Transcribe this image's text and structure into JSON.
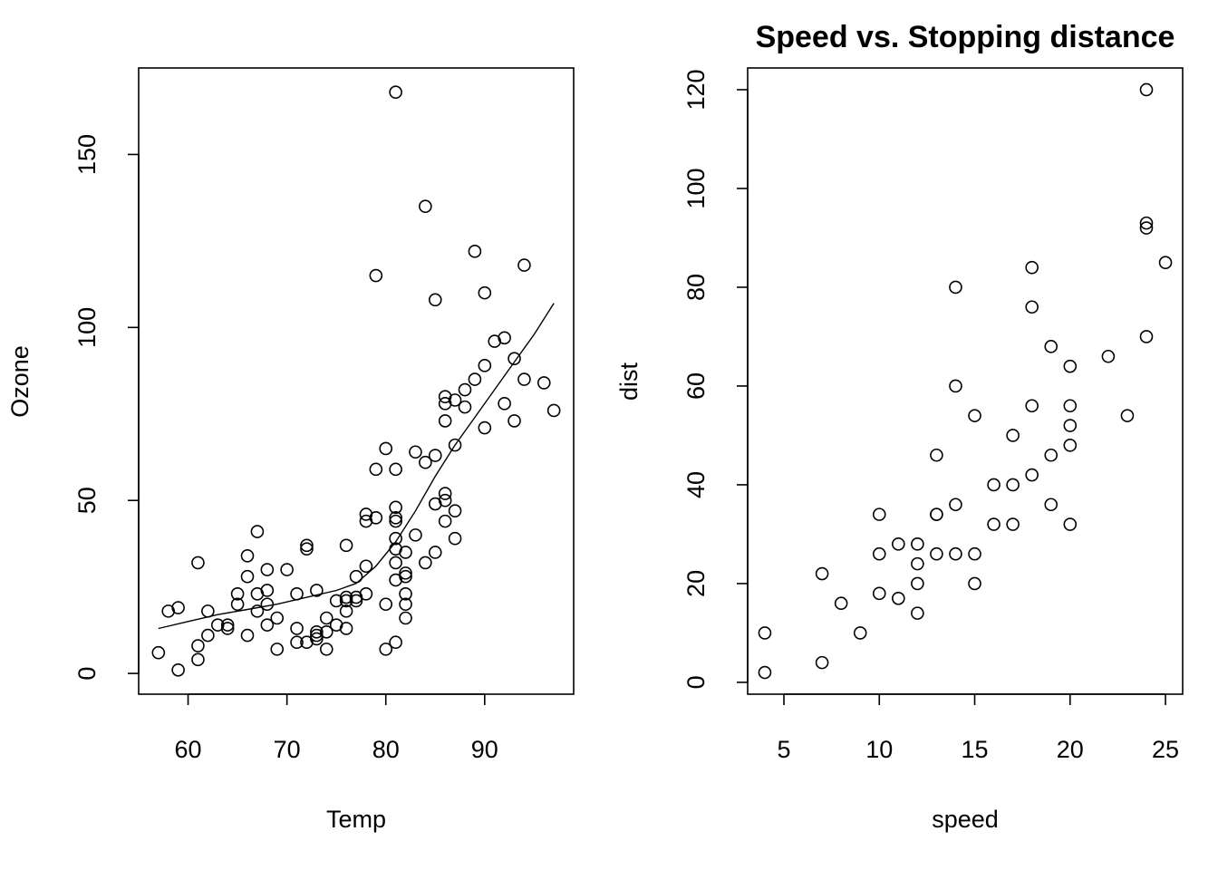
{
  "chart_data": [
    {
      "type": "scatter",
      "title": "",
      "xlabel": "Temp",
      "ylabel": "Ozone",
      "xlim": [
        55,
        99
      ],
      "ylim": [
        -6,
        175
      ],
      "xticks": [
        60,
        70,
        80,
        90
      ],
      "yticks": [
        0,
        50,
        100,
        150
      ],
      "grid": false,
      "points": [
        [
          57,
          6
        ],
        [
          58,
          18
        ],
        [
          59,
          1
        ],
        [
          59,
          19
        ],
        [
          61,
          4
        ],
        [
          61,
          8
        ],
        [
          61,
          32
        ],
        [
          62,
          11
        ],
        [
          62,
          18
        ],
        [
          63,
          14
        ],
        [
          64,
          13
        ],
        [
          64,
          14
        ],
        [
          65,
          20
        ],
        [
          65,
          23
        ],
        [
          66,
          11
        ],
        [
          66,
          28
        ],
        [
          66,
          34
        ],
        [
          67,
          18
        ],
        [
          67,
          23
        ],
        [
          67,
          41
        ],
        [
          68,
          14
        ],
        [
          68,
          20
        ],
        [
          68,
          24
        ],
        [
          68,
          30
        ],
        [
          69,
          7
        ],
        [
          69,
          16
        ],
        [
          70,
          30
        ],
        [
          71,
          9
        ],
        [
          71,
          13
        ],
        [
          71,
          23
        ],
        [
          72,
          9
        ],
        [
          72,
          36
        ],
        [
          72,
          37
        ],
        [
          73,
          10
        ],
        [
          73,
          11
        ],
        [
          73,
          12
        ],
        [
          73,
          24
        ],
        [
          74,
          7
        ],
        [
          74,
          12
        ],
        [
          74,
          16
        ],
        [
          75,
          14
        ],
        [
          75,
          21
        ],
        [
          76,
          13
        ],
        [
          76,
          18
        ],
        [
          76,
          21
        ],
        [
          76,
          22
        ],
        [
          76,
          37
        ],
        [
          77,
          21
        ],
        [
          77,
          22
        ],
        [
          77,
          28
        ],
        [
          78,
          23
        ],
        [
          78,
          31
        ],
        [
          78,
          44
        ],
        [
          78,
          46
        ],
        [
          79,
          45
        ],
        [
          79,
          59
        ],
        [
          79,
          115
        ],
        [
          80,
          7
        ],
        [
          80,
          20
        ],
        [
          80,
          65
        ],
        [
          81,
          9
        ],
        [
          81,
          27
        ],
        [
          81,
          32
        ],
        [
          81,
          36
        ],
        [
          81,
          39
        ],
        [
          81,
          44
        ],
        [
          81,
          45
        ],
        [
          81,
          48
        ],
        [
          81,
          59
        ],
        [
          81,
          168
        ],
        [
          82,
          16
        ],
        [
          82,
          20
        ],
        [
          82,
          23
        ],
        [
          82,
          28
        ],
        [
          82,
          29
        ],
        [
          82,
          35
        ],
        [
          83,
          40
        ],
        [
          83,
          64
        ],
        [
          84,
          32
        ],
        [
          84,
          61
        ],
        [
          84,
          135
        ],
        [
          85,
          35
        ],
        [
          85,
          49
        ],
        [
          85,
          63
        ],
        [
          85,
          108
        ],
        [
          86,
          44
        ],
        [
          86,
          50
        ],
        [
          86,
          52
        ],
        [
          86,
          73
        ],
        [
          86,
          78
        ],
        [
          86,
          80
        ],
        [
          87,
          39
        ],
        [
          87,
          47
        ],
        [
          87,
          66
        ],
        [
          87,
          79
        ],
        [
          88,
          77
        ],
        [
          88,
          82
        ],
        [
          89,
          85
        ],
        [
          89,
          122
        ],
        [
          90,
          71
        ],
        [
          90,
          89
        ],
        [
          90,
          110
        ],
        [
          91,
          96
        ],
        [
          92,
          78
        ],
        [
          92,
          97
        ],
        [
          93,
          73
        ],
        [
          93,
          91
        ],
        [
          94,
          85
        ],
        [
          94,
          118
        ],
        [
          96,
          84
        ],
        [
          97,
          76
        ]
      ],
      "smooth_line": [
        [
          57,
          13
        ],
        [
          60,
          15
        ],
        [
          63,
          17
        ],
        [
          66,
          18.5
        ],
        [
          69,
          20
        ],
        [
          72,
          22
        ],
        [
          75,
          24
        ],
        [
          77,
          26
        ],
        [
          79,
          31
        ],
        [
          81,
          38
        ],
        [
          83,
          47
        ],
        [
          85,
          57
        ],
        [
          87,
          66
        ],
        [
          89,
          74
        ],
        [
          91,
          82
        ],
        [
          93,
          90
        ],
        [
          95,
          98
        ],
        [
          97,
          107
        ]
      ]
    },
    {
      "type": "scatter",
      "title": "Speed vs. Stopping distance",
      "xlabel": "speed",
      "ylabel": "dist",
      "xlim": [
        3.1,
        25.9
      ],
      "ylim": [
        -2.4,
        124.4
      ],
      "xticks": [
        5,
        10,
        15,
        20,
        25
      ],
      "yticks": [
        0,
        20,
        40,
        60,
        80,
        100,
        120
      ],
      "grid": false,
      "points": [
        [
          4,
          2
        ],
        [
          4,
          10
        ],
        [
          7,
          4
        ],
        [
          7,
          22
        ],
        [
          8,
          16
        ],
        [
          9,
          10
        ],
        [
          10,
          18
        ],
        [
          10,
          26
        ],
        [
          10,
          34
        ],
        [
          11,
          17
        ],
        [
          11,
          28
        ],
        [
          12,
          14
        ],
        [
          12,
          20
        ],
        [
          12,
          24
        ],
        [
          12,
          28
        ],
        [
          13,
          26
        ],
        [
          13,
          34
        ],
        [
          13,
          34
        ],
        [
          13,
          46
        ],
        [
          14,
          26
        ],
        [
          14,
          36
        ],
        [
          14,
          60
        ],
        [
          14,
          80
        ],
        [
          15,
          20
        ],
        [
          15,
          26
        ],
        [
          15,
          54
        ],
        [
          16,
          32
        ],
        [
          16,
          40
        ],
        [
          17,
          32
        ],
        [
          17,
          40
        ],
        [
          17,
          50
        ],
        [
          18,
          42
        ],
        [
          18,
          56
        ],
        [
          18,
          76
        ],
        [
          18,
          84
        ],
        [
          19,
          36
        ],
        [
          19,
          46
        ],
        [
          19,
          68
        ],
        [
          20,
          32
        ],
        [
          20,
          48
        ],
        [
          20,
          52
        ],
        [
          20,
          56
        ],
        [
          20,
          64
        ],
        [
          22,
          66
        ],
        [
          23,
          54
        ],
        [
          24,
          70
        ],
        [
          24,
          92
        ],
        [
          24,
          93
        ],
        [
          24,
          120
        ],
        [
          25,
          85
        ]
      ]
    }
  ]
}
